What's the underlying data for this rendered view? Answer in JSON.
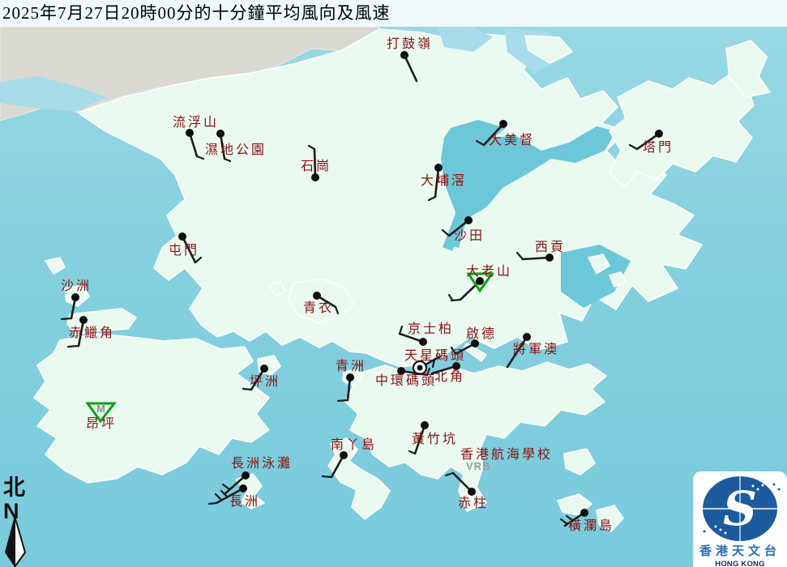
{
  "title": "2025年7月27日20時00分的十分鐘平均風向及風速",
  "colors": {
    "water": "#84d0df",
    "water_deep": "#6cc7d9",
    "land": "#eafaf0",
    "urban": "#d9d9d2",
    "station_label": "#8b1212",
    "barb": "#1c1c1c",
    "mountain_triangle": "#0ba318",
    "vrb_text": "#9b9b9b",
    "logo_blue": "#1b5b9e",
    "logo_cn_text": "#2a6db5",
    "logo_en_text": "#13316b"
  },
  "compass": {
    "hanzi": "北",
    "letter": "N"
  },
  "logo": {
    "cn": "香港天文台",
    "en": "HONG KONG OBSERVATORY",
    "monogram": "S"
  },
  "annotations": {
    "vrb": "VRB",
    "mountain_marker": "M"
  },
  "stations": [
    {
      "id": "ta-kwu-ling",
      "name": "打鼓嶺",
      "label": [
        477,
        45
      ],
      "dot": [
        499,
        68
      ],
      "line": [
        [
          499,
          68
        ],
        [
          514,
          100
        ]
      ],
      "feathers": []
    },
    {
      "id": "lau-fau-shan",
      "name": "流浮山",
      "label": [
        213,
        142
      ],
      "dot": [
        234,
        164
      ],
      "line": [
        [
          234,
          164
        ],
        [
          243,
          193
        ]
      ],
      "feathers": [
        [
          [
            243,
            193
          ],
          [
            251,
            196
          ]
        ]
      ]
    },
    {
      "id": "wetland-park",
      "name": "濕地公園",
      "label": [
        253,
        176
      ],
      "dot": [
        272,
        165
      ],
      "line": [
        [
          272,
          165
        ],
        [
          277,
          196
        ]
      ],
      "feathers": [
        [
          [
            277,
            196
          ],
          [
            284,
            199
          ]
        ]
      ]
    },
    {
      "id": "shek-kong",
      "name": "石崗",
      "label": [
        371,
        196
      ],
      "dot": [
        389,
        219
      ],
      "line": [
        [
          389,
          219
        ],
        [
          388,
          184
        ]
      ],
      "feathers": [
        [
          [
            388,
            184
          ],
          [
            381,
            180
          ]
        ]
      ]
    },
    {
      "id": "tai-po-kau",
      "name": "大埔滘",
      "label": [
        519,
        214
      ],
      "dot": [
        541,
        207
      ],
      "line": [
        [
          541,
          207
        ],
        [
          537,
          243
        ]
      ],
      "feathers": [
        [
          [
            537,
            243
          ],
          [
            529,
            247
          ]
        ]
      ]
    },
    {
      "id": "tai-mei-tuk",
      "name": "大美督",
      "label": [
        603,
        164
      ],
      "dot": [
        621,
        153
      ],
      "line": [
        [
          621,
          153
        ],
        [
          597,
          179
        ]
      ],
      "feathers": [
        [
          [
            597,
            179
          ],
          [
            588,
            174
          ]
        ]
      ]
    },
    {
      "id": "tap-mun",
      "name": "塔門",
      "label": [
        793,
        173
      ],
      "dot": [
        813,
        165
      ],
      "line": [
        [
          813,
          165
        ],
        [
          786,
          184
        ]
      ],
      "feathers": [
        [
          [
            786,
            184
          ],
          [
            777,
            179
          ]
        ]
      ]
    },
    {
      "id": "sha-tin",
      "name": "沙田",
      "label": [
        560,
        282
      ],
      "dot": [
        578,
        272
      ],
      "line": [
        [
          578,
          272
        ],
        [
          554,
          291
        ]
      ],
      "feathers": [
        [
          [
            554,
            291
          ],
          [
            546,
            284
          ]
        ]
      ]
    },
    {
      "id": "tuen-mun",
      "name": "屯門",
      "label": [
        208,
        300
      ],
      "dot": [
        225,
        292
      ],
      "line": [
        [
          225,
          292
        ],
        [
          241,
          324
        ]
      ],
      "feathers": [
        [
          [
            241,
            324
          ],
          [
            248,
            318
          ]
        ]
      ]
    },
    {
      "id": "sai-kung",
      "name": "西貢",
      "label": [
        660,
        296
      ],
      "dot": [
        678,
        318
      ],
      "line": [
        [
          678,
          318
        ],
        [
          645,
          320
        ]
      ],
      "feathers": [
        [
          [
            645,
            320
          ],
          [
            638,
            312
          ]
        ]
      ]
    },
    {
      "id": "tates-cairn",
      "name": "大老山",
      "label": [
        575,
        326
      ],
      "dot": [
        592,
        347
      ],
      "tri": [
        [
          578,
          338
        ],
        [
          607,
          338
        ],
        [
          592,
          359
        ]
      ],
      "line": [
        [
          592,
          347
        ],
        [
          568,
          370
        ]
      ],
      "feathers": [
        [
          [
            568,
            370
          ],
          [
            557,
            371
          ]
        ],
        [
          [
            558,
            370
          ],
          [
            554,
            364
          ]
        ]
      ]
    },
    {
      "id": "sha-chau",
      "name": "沙洲",
      "label": [
        75,
        344
      ],
      "dot": [
        93,
        367
      ],
      "line": [
        [
          93,
          367
        ],
        [
          88,
          393
        ]
      ],
      "feathers": [
        [
          [
            88,
            393
          ],
          [
            76,
            394
          ]
        ]
      ]
    },
    {
      "id": "chek-lap-kok",
      "name": "赤鱲角",
      "label": [
        85,
        402
      ],
      "dot": [
        103,
        395
      ],
      "line": [
        [
          103,
          395
        ],
        [
          97,
          427
        ]
      ],
      "feathers": [
        [
          [
            97,
            427
          ],
          [
            84,
            428
          ]
        ]
      ]
    },
    {
      "id": "tsing-yi",
      "name": "青衣",
      "label": [
        374,
        371
      ],
      "dot": [
        391,
        365
      ],
      "line": [
        [
          391,
          365
        ],
        [
          414,
          379
        ]
      ],
      "feathers": [
        [
          [
            414,
            379
          ],
          [
            417,
            387
          ]
        ]
      ]
    },
    {
      "id": "kings-park",
      "name": "京士柏",
      "label": [
        503,
        397
      ],
      "dot": [
        522,
        422
      ],
      "line": [
        [
          522,
          422
        ],
        [
          493,
          412
        ]
      ],
      "feathers": [
        [
          [
            493,
            412
          ],
          [
            496,
            403
          ]
        ]
      ]
    },
    {
      "id": "kai-tak",
      "name": "啟德",
      "label": [
        575,
        403
      ],
      "dot": [
        586,
        424
      ],
      "line": [
        [
          586,
          424
        ],
        [
          562,
          437
        ]
      ],
      "feathers": [
        [
          [
            562,
            437
          ],
          [
            557,
            429
          ]
        ]
      ]
    },
    {
      "id": "tseung-kwan-o",
      "name": "將軍澳",
      "label": [
        633,
        422
      ],
      "dot": [
        650,
        416
      ],
      "line": [
        [
          650,
          416
        ],
        [
          626,
          453
        ]
      ],
      "feathers": []
    },
    {
      "id": "star-ferry-pier",
      "name": "天星碼頭",
      "label": [
        499,
        430
      ],
      "dot": [
        518,
        454
      ],
      "marker": "ring",
      "line": [
        [
          518,
          454
        ],
        [
          543,
          440
        ]
      ],
      "feathers": [
        [
          [
            536,
            444
          ],
          [
            534,
            453
          ]
        ]
      ]
    },
    {
      "id": "central-pier",
      "name": "中環碼頭",
      "label": [
        463,
        461
      ],
      "dot": [
        495,
        458
      ],
      "line": [
        [
          495,
          458
        ],
        [
          527,
          463
        ]
      ],
      "feathers": [
        [
          [
            527,
            463
          ],
          [
            530,
            455
          ]
        ]
      ]
    },
    {
      "id": "north-point",
      "name": "北角",
      "label": [
        536,
        456
      ],
      "dot": [
        563,
        452
      ],
      "line": [
        [
          563,
          452
        ],
        [
          533,
          461
        ]
      ],
      "feathers": []
    },
    {
      "id": "green-island",
      "name": "青洲",
      "label": [
        414,
        443
      ],
      "dot": [
        432,
        466
      ],
      "line": [
        [
          432,
          466
        ],
        [
          429,
          494
        ]
      ],
      "feathers": [
        [
          [
            429,
            494
          ],
          [
            417,
            495
          ]
        ]
      ]
    },
    {
      "id": "peng-chau",
      "name": "坪洲",
      "label": [
        308,
        462
      ],
      "dot": [
        326,
        455
      ],
      "line": [
        [
          326,
          455
        ],
        [
          310,
          481
        ]
      ],
      "feathers": [
        [
          [
            310,
            481
          ],
          [
            300,
            480
          ]
        ]
      ]
    },
    {
      "id": "ngong-ping",
      "name": "昂坪",
      "label": [
        106,
        514
      ],
      "tri": [
        [
          108,
          498
        ],
        [
          141,
          498
        ],
        [
          124,
          520
        ]
      ],
      "m": true
    },
    {
      "id": "lamma-island",
      "name": "南丫島",
      "label": [
        408,
        540
      ],
      "dot": [
        424,
        562
      ],
      "line": [
        [
          424,
          562
        ],
        [
          409,
          589
        ]
      ],
      "feathers": [
        [
          [
            409,
            589
          ],
          [
            398,
            588
          ]
        ]
      ]
    },
    {
      "id": "wong-chuk-hang",
      "name": "黃竹坑",
      "label": [
        508,
        533
      ],
      "dot": [
        524,
        525
      ],
      "line": [
        [
          524,
          525
        ],
        [
          512,
          560
        ]
      ],
      "feathers": [
        [
          [
            512,
            560
          ],
          [
            505,
            557
          ]
        ]
      ]
    },
    {
      "id": "hk-sea-school",
      "name": "香港航海學校",
      "label": [
        568,
        552
      ],
      "vrb": [
        575,
        569
      ]
    },
    {
      "id": "stanley",
      "name": "赤柱",
      "label": [
        565,
        612
      ],
      "dot": [
        582,
        607
      ],
      "line": [
        [
          582,
          607
        ],
        [
          559,
          584
        ]
      ],
      "feathers": [
        [
          [
            559,
            584
          ],
          [
            550,
            587
          ]
        ]
      ]
    },
    {
      "id": "waglan-island",
      "name": "橫瀾島",
      "label": [
        701,
        640
      ],
      "dot": [
        721,
        633
      ],
      "line": [
        [
          721,
          633
        ],
        [
          697,
          649
        ]
      ],
      "feathers": [
        [
          [
            700,
            647
          ],
          [
            692,
            641
          ]
        ],
        [
          [
            707,
            643
          ],
          [
            699,
            637
          ]
        ]
      ]
    },
    {
      "id": "cheung-chau-beach",
      "name": "長洲泳灘",
      "label": [
        285,
        563
      ],
      "dot": [
        303,
        587
      ],
      "line": [
        [
          303,
          587
        ],
        [
          277,
          610
        ]
      ],
      "feathers": [
        [
          [
            283,
            604
          ],
          [
            275,
            598
          ]
        ]
      ]
    },
    {
      "id": "cheung-chau",
      "name": "長洲",
      "label": [
        283,
        610
      ],
      "dot": [
        300,
        603
      ],
      "line": [
        [
          300,
          603
        ],
        [
          267,
          621
        ]
      ],
      "feathers": [
        [
          [
            273,
            617
          ],
          [
            266,
            610
          ]
        ],
        [
          [
            280,
            613
          ],
          [
            273,
            606
          ]
        ],
        [
          [
            267,
            621
          ],
          [
            258,
            622
          ]
        ]
      ]
    }
  ]
}
